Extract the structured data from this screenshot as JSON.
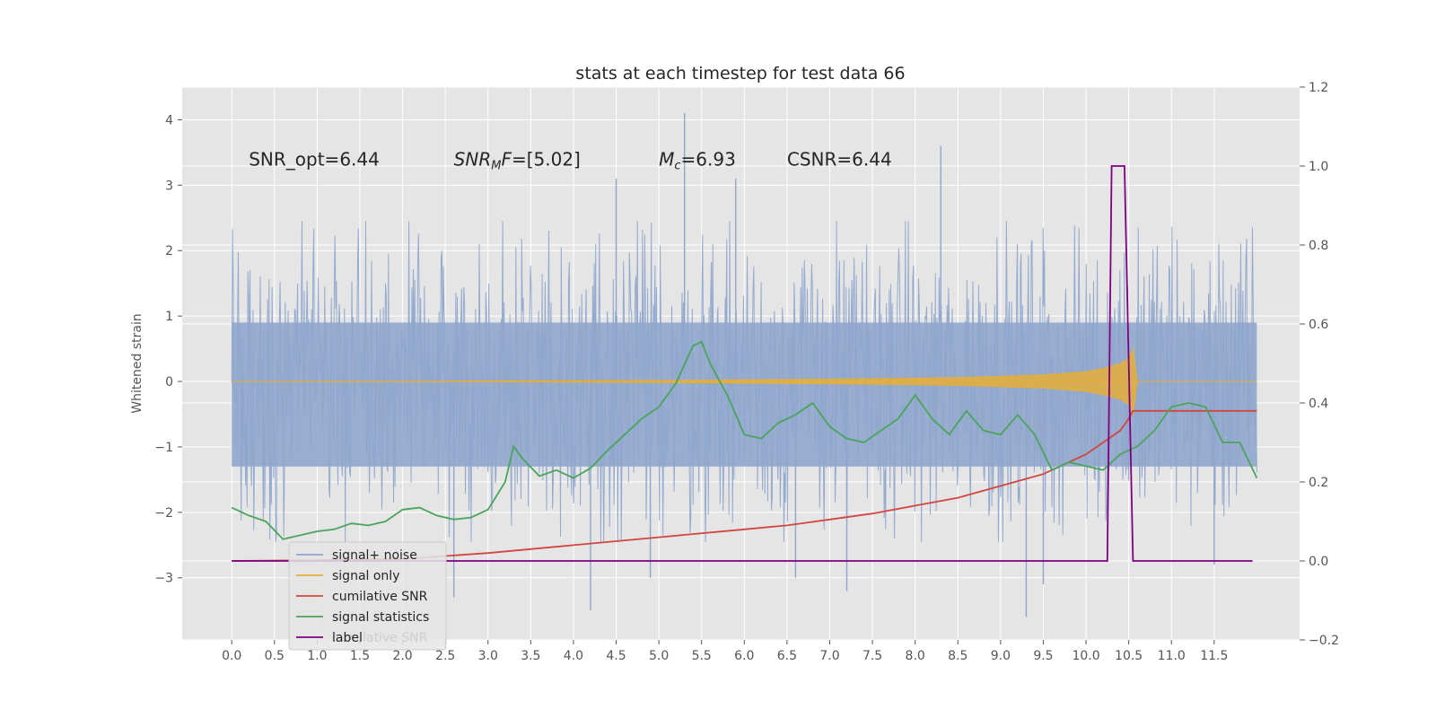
{
  "chart_data": {
    "type": "line",
    "title": "stats at each timestep for test data 66",
    "ylabel": "Whitened strain",
    "xlim": [
      -0.58,
      12.5
    ],
    "ylim": [
      -3.95,
      4.5
    ],
    "y2lim": [
      -0.2,
      1.2
    ],
    "x_ticks": [
      0.0,
      0.5,
      1.0,
      1.5,
      2.0,
      2.5,
      3.0,
      3.5,
      4.0,
      4.5,
      5.0,
      5.5,
      6.0,
      6.5,
      7.0,
      7.5,
      8.0,
      8.5,
      9.0,
      9.5,
      10.0,
      10.5,
      11.0,
      11.5
    ],
    "x_tick_labels": [
      "0.0",
      "0.5",
      "1.0",
      "1.5",
      "2.0",
      "2.5",
      "3.0",
      "3.5",
      "4.0",
      "4.5",
      "5.0",
      "5.5",
      "6.0",
      "6.5",
      "7.0",
      "7.5",
      "8.0",
      "8.5",
      "9.0",
      "9.5",
      "10.0",
      "10.5",
      "11.0",
      "11.5"
    ],
    "y_ticks": [
      -3,
      -2,
      -1,
      0,
      1,
      2,
      3,
      4
    ],
    "y_tick_labels": [
      "−3",
      "−2",
      "−1",
      "0",
      "1",
      "2",
      "3",
      "4"
    ],
    "y2_ticks": [
      -0.2,
      0.0,
      0.2,
      0.4,
      0.6,
      0.8,
      1.0,
      1.2
    ],
    "y2_tick_labels": [
      "−0.2",
      "0.0",
      "0.2",
      "0.4",
      "0.6",
      "0.8",
      "1.0",
      "1.2"
    ],
    "grid": true,
    "background": "#e5e5e5",
    "annotations": [
      {
        "x": 0.2,
        "y": 3.3,
        "text": "SNR_opt=6.44"
      },
      {
        "x": 2.6,
        "y": 3.3,
        "text": "SNR_MF=[5.02]"
      },
      {
        "x": 5.0,
        "y": 3.3,
        "text": "M_c=6.93"
      },
      {
        "x": 6.5,
        "y": 3.3,
        "text": "CSNR=6.44"
      }
    ],
    "legend_position": "lower-left",
    "legend_hidden_text": "cumilative SNR",
    "series": [
      {
        "name": "signal+ noise",
        "color": "#8fa6cc",
        "axis": "left",
        "description": "noise band roughly between -2 and +2 with spikes",
        "x_range": [
          0.0,
          12.0
        ],
        "typical_range": [
          -2.0,
          2.0
        ],
        "spikes": [
          [
            5.3,
            4.1
          ],
          [
            8.3,
            3.6
          ],
          [
            4.5,
            3.1
          ],
          [
            5.9,
            3.1
          ],
          [
            4.2,
            -3.5
          ],
          [
            9.3,
            -3.6
          ],
          [
            7.2,
            -3.2
          ],
          [
            9.5,
            -3.1
          ],
          [
            2.6,
            -3.3
          ],
          [
            6.6,
            -3.0
          ],
          [
            4.9,
            -3.0
          ],
          [
            11.5,
            -2.8
          ]
        ]
      },
      {
        "name": "signal only",
        "color": "#e5ae38",
        "axis": "left",
        "x": [
          0,
          2.5,
          4,
          5,
          6,
          7,
          8,
          8.5,
          9,
          9.5,
          10,
          10.2,
          10.4,
          10.5,
          10.55,
          10.6,
          12.0
        ],
        "amplitude": [
          0,
          0.005,
          0.01,
          0.015,
          0.025,
          0.035,
          0.05,
          0.06,
          0.08,
          0.1,
          0.15,
          0.2,
          0.27,
          0.35,
          0.5,
          0,
          0
        ]
      },
      {
        "name": "cumilative SNR",
        "color": "#d1463f",
        "axis": "right",
        "x": [
          0,
          1,
          2,
          3,
          4,
          5,
          6,
          6.5,
          7,
          7.5,
          8,
          8.5,
          9,
          9.5,
          10,
          10.2,
          10.4,
          10.5,
          10.55,
          12.0
        ],
        "y": [
          0,
          0.002,
          0.005,
          0.02,
          0.04,
          0.06,
          0.08,
          0.09,
          0.105,
          0.12,
          0.14,
          0.16,
          0.19,
          0.22,
          0.27,
          0.3,
          0.33,
          0.36,
          0.38,
          0.38
        ]
      },
      {
        "name": "signal statistics",
        "color": "#4aa45b",
        "axis": "right",
        "x": [
          0,
          0.2,
          0.4,
          0.6,
          0.8,
          1.0,
          1.2,
          1.4,
          1.6,
          1.8,
          2.0,
          2.2,
          2.4,
          2.6,
          2.8,
          3.0,
          3.2,
          3.3,
          3.4,
          3.6,
          3.8,
          4.0,
          4.2,
          4.4,
          4.6,
          4.8,
          5.0,
          5.2,
          5.4,
          5.5,
          5.6,
          5.8,
          6.0,
          6.2,
          6.4,
          6.6,
          6.8,
          7.0,
          7.2,
          7.4,
          7.6,
          7.8,
          8.0,
          8.2,
          8.4,
          8.6,
          8.8,
          9.0,
          9.2,
          9.4,
          9.6,
          9.8,
          10.0,
          10.2,
          10.4,
          10.6,
          10.8,
          11.0,
          11.2,
          11.4,
          11.6,
          11.8,
          12.0
        ],
        "y": [
          0.135,
          0.115,
          0.1,
          0.055,
          0.065,
          0.075,
          0.08,
          0.095,
          0.09,
          0.1,
          0.13,
          0.135,
          0.115,
          0.105,
          0.11,
          0.13,
          0.2,
          0.29,
          0.26,
          0.215,
          0.23,
          0.21,
          0.235,
          0.28,
          0.32,
          0.36,
          0.39,
          0.45,
          0.545,
          0.555,
          0.5,
          0.42,
          0.32,
          0.31,
          0.35,
          0.37,
          0.4,
          0.34,
          0.31,
          0.3,
          0.33,
          0.36,
          0.42,
          0.36,
          0.32,
          0.38,
          0.33,
          0.32,
          0.37,
          0.32,
          0.23,
          0.25,
          0.24,
          0.23,
          0.27,
          0.29,
          0.33,
          0.39,
          0.4,
          0.39,
          0.3,
          0.3,
          0.21
        ]
      },
      {
        "name": "label",
        "color": "#800080",
        "axis": "right",
        "x": [
          0,
          10.25,
          10.3,
          10.45,
          10.55,
          10.6,
          11.95
        ],
        "y": [
          0,
          0,
          1,
          1,
          0,
          0,
          0
        ]
      }
    ]
  }
}
